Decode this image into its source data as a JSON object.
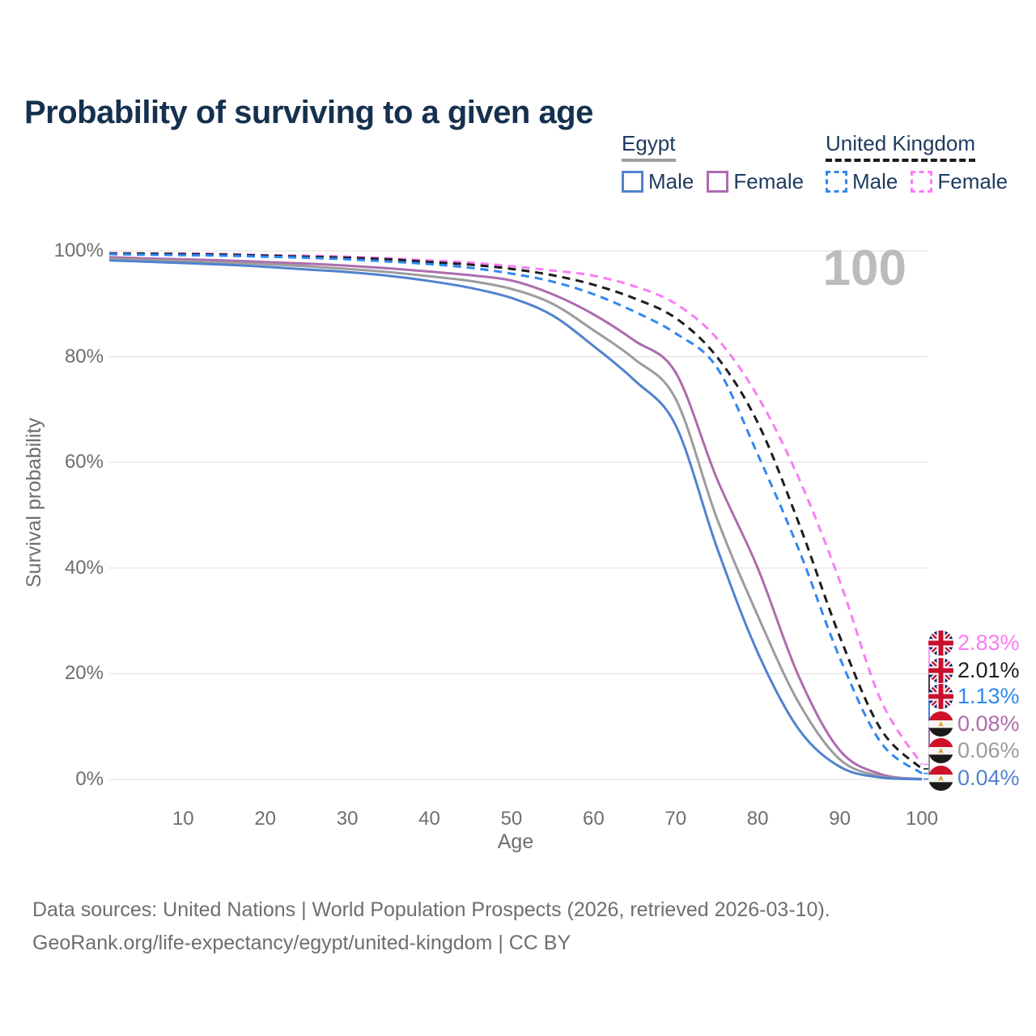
{
  "title": "Probability of surviving to a given age",
  "watermark_age": "100",
  "legend": {
    "groups": [
      {
        "label": "Egypt",
        "line_style": "solid",
        "items": [
          {
            "label": "Male",
            "color": "#5182CE"
          },
          {
            "label": "Female",
            "color": "#AE6CAE"
          }
        ]
      },
      {
        "label": "United Kingdom",
        "line_style": "dashed",
        "items": [
          {
            "label": "Male",
            "color": "#2F88F0"
          },
          {
            "label": "Female",
            "color": "#F97DF5"
          }
        ]
      }
    ]
  },
  "chart_data": {
    "type": "line",
    "title": "Probability of surviving to a given age",
    "xlabel": "Age",
    "ylabel": "Survival probability",
    "xlim": [
      1,
      100
    ],
    "ylim": [
      0,
      100
    ],
    "grid": true,
    "legend_position": "top-right",
    "x_ticks": [
      10,
      20,
      30,
      40,
      50,
      60,
      70,
      80,
      90,
      100
    ],
    "y_ticks": [
      {
        "value": 0,
        "label": "0%"
      },
      {
        "value": 20,
        "label": "20%"
      },
      {
        "value": 40,
        "label": "40%"
      },
      {
        "value": 60,
        "label": "60%"
      },
      {
        "value": 80,
        "label": "80%"
      },
      {
        "value": 100,
        "label": "100%"
      }
    ],
    "ages": [
      1,
      5,
      10,
      15,
      20,
      25,
      30,
      35,
      40,
      45,
      50,
      55,
      60,
      65,
      70,
      75,
      80,
      85,
      90,
      95,
      100
    ],
    "series": [
      {
        "country": "United Kingdom",
        "legend_label": "Female",
        "flag": "uk",
        "line": "dashed",
        "color": "#F97DF5",
        "end_label": "2.83%",
        "values": [
          99.6,
          99.5,
          99.5,
          99.4,
          99.2,
          99.1,
          98.9,
          98.6,
          98.2,
          97.8,
          97.1,
          96.3,
          95.3,
          93.3,
          90.0,
          83.5,
          72.5,
          57.0,
          37.5,
          15.0,
          2.83
        ]
      },
      {
        "country": "United Kingdom",
        "legend_label": null,
        "flag": "uk",
        "line": "dashed",
        "color": "#1D1D1D",
        "end_label": "2.01%",
        "values": [
          99.5,
          99.5,
          99.4,
          99.3,
          99.1,
          98.9,
          98.7,
          98.4,
          97.9,
          97.4,
          96.6,
          95.4,
          93.6,
          91.0,
          87.3,
          80.0,
          67.5,
          48.5,
          27.0,
          9.5,
          2.01
        ]
      },
      {
        "country": "United Kingdom",
        "legend_label": "Male",
        "flag": "uk",
        "line": "dashed",
        "color": "#2F88F0",
        "end_label": "1.13%",
        "values": [
          99.4,
          99.3,
          99.2,
          99.1,
          98.9,
          98.7,
          98.4,
          98.0,
          97.5,
          96.8,
          95.7,
          94.2,
          91.8,
          88.5,
          84.4,
          78.0,
          61.5,
          43.5,
          23.0,
          7.0,
          1.13
        ]
      },
      {
        "country": "Egypt",
        "legend_label": "Female",
        "flag": "egypt",
        "line": "solid",
        "color": "#AE6CAE",
        "end_label": "0.08%",
        "values": [
          98.8,
          98.6,
          98.4,
          98.2,
          97.9,
          97.6,
          97.2,
          96.7,
          96.1,
          95.4,
          94.4,
          91.8,
          88.0,
          83.0,
          77.0,
          57.0,
          40.0,
          19.5,
          5.5,
          1.0,
          0.08
        ]
      },
      {
        "country": "Egypt",
        "legend_label": null,
        "flag": "egypt",
        "line": "solid",
        "color": "#9C9C9C",
        "end_label": "0.06%",
        "values": [
          98.5,
          98.3,
          98.1,
          97.8,
          97.5,
          97.1,
          96.6,
          96.0,
          95.2,
          94.3,
          92.8,
          90.0,
          85.0,
          79.5,
          72.0,
          49.5,
          31.0,
          14.5,
          3.8,
          0.6,
          0.06
        ]
      },
      {
        "country": "Egypt",
        "legend_label": "Male",
        "flag": "egypt",
        "line": "solid",
        "color": "#5182CE",
        "end_label": "0.04%",
        "values": [
          98.2,
          98.0,
          97.7,
          97.4,
          97.0,
          96.5,
          96.0,
          95.3,
          94.3,
          93.0,
          91.1,
          87.8,
          82.0,
          75.5,
          67.0,
          44.0,
          24.0,
          9.5,
          2.4,
          0.35,
          0.04
        ]
      }
    ]
  },
  "footer": {
    "line1": "Data sources: United Nations | World Population Prospects (2026, retrieved 2026-03-10).",
    "line2": "GeoRank.org/life-expectancy/egypt/united-kingdom | CC BY"
  }
}
